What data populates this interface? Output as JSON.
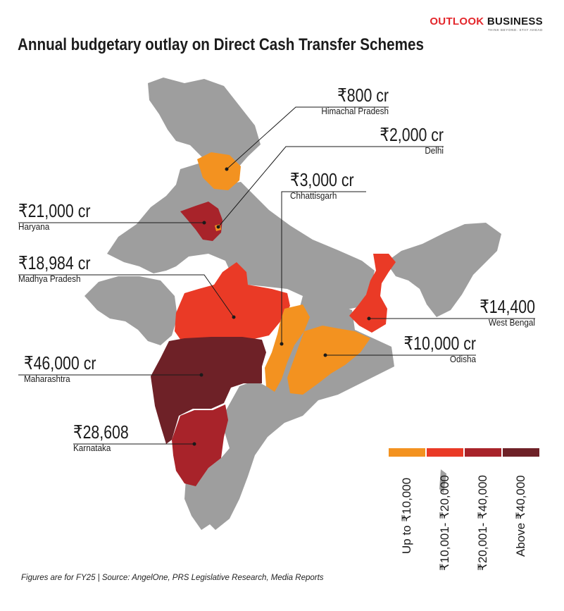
{
  "brand": {
    "name_part1": "OUTLOOK",
    "name_part2": "BUSINESS",
    "tagline": "THINK BEYOND. STAY AHEAD"
  },
  "title": "Annual budgetary outlay on Direct Cash Transfer Schemes",
  "colors": {
    "land": "#9e9e9e",
    "up_to_10000": "#f39220",
    "10001_20000": "#ea3a26",
    "20001_40000": "#a8232a",
    "above_40000": "#6e2127"
  },
  "callouts": [
    {
      "id": "himachal",
      "amount": "₹800 cr",
      "state": "Himachal Pradesh"
    },
    {
      "id": "delhi",
      "amount": "₹2,000 cr",
      "state": "Delhi"
    },
    {
      "id": "chhattisgarh",
      "amount": "₹3,000 cr",
      "state": "Chhattisgarh"
    },
    {
      "id": "haryana",
      "amount": "₹21,000 cr",
      "state": "Haryana"
    },
    {
      "id": "mp",
      "amount": "₹18,984 cr",
      "state": "Madhya Pradesh"
    },
    {
      "id": "westbengal",
      "amount": "₹14,400",
      "state": "West Bengal"
    },
    {
      "id": "odisha",
      "amount": "₹10,000 cr",
      "state": "Odisha"
    },
    {
      "id": "maharashtra",
      "amount": "₹46,000 cr",
      "state": "Maharashtra"
    },
    {
      "id": "karnataka",
      "amount": "₹28,608",
      "state": "Karnataka"
    }
  ],
  "legend": [
    {
      "label": "Up to  ₹10,000",
      "color": "#f39220"
    },
    {
      "label": "₹10,001- ₹20,000",
      "color": "#ea3a26"
    },
    {
      "label": "₹20,001- ₹40,000",
      "color": "#a8232a"
    },
    {
      "label": "Above ₹40,000",
      "color": "#6e2127"
    }
  ],
  "footnote": "Figures are for FY25 | Source: AngelOne, PRS Legislative Research, Media Reports"
}
